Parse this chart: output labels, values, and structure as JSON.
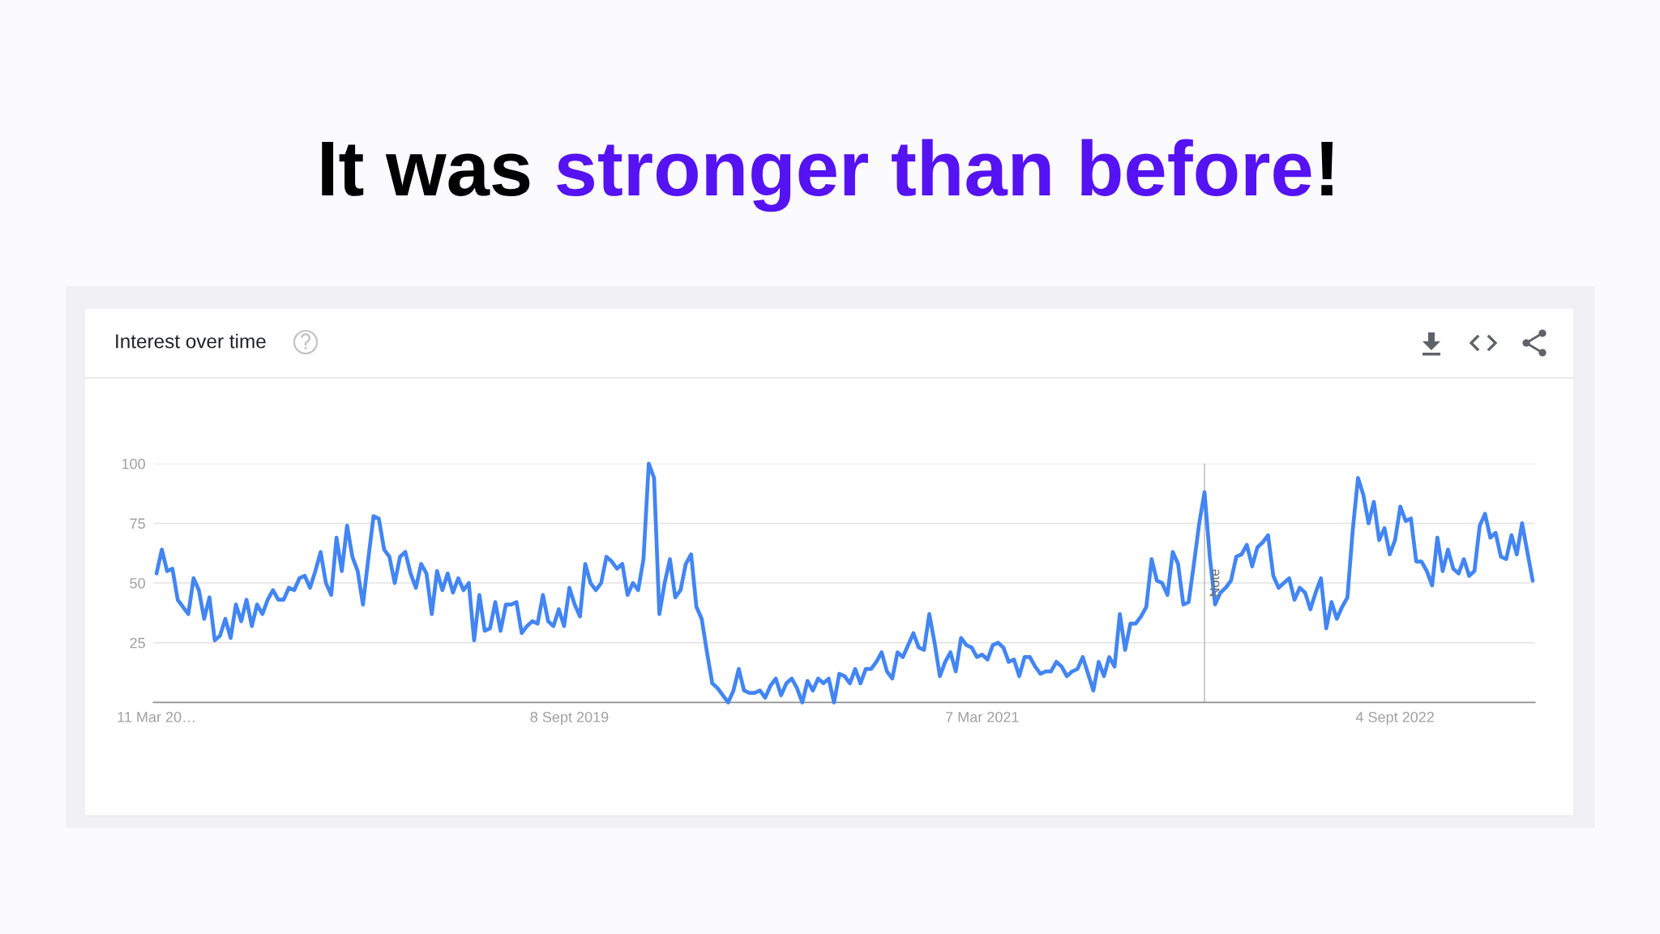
{
  "chart_data": {
    "type": "line",
    "title": "It was stronger than before!",
    "subtitle": "Interest over time",
    "x": [
      "2018-03-11",
      "2018-03-18",
      "2018-03-25",
      "2018-04-01",
      "2018-04-08",
      "2018-04-15",
      "2018-04-22",
      "2018-04-29",
      "2018-05-06",
      "2018-05-13",
      "2018-05-20",
      "2018-05-27",
      "2018-06-03",
      "2018-06-10",
      "2018-06-17",
      "2018-06-24",
      "2018-07-01",
      "2018-07-08",
      "2018-07-15",
      "2018-07-22",
      "2018-07-29",
      "2018-08-05",
      "2018-08-12",
      "2018-08-19",
      "2018-08-26",
      "2018-09-02",
      "2018-09-09",
      "2018-09-16",
      "2018-09-23",
      "2018-09-30",
      "2018-10-07",
      "2018-10-14",
      "2018-10-21",
      "2018-10-28",
      "2018-11-04",
      "2018-11-11",
      "2018-11-18",
      "2018-11-25",
      "2018-12-02",
      "2018-12-09",
      "2018-12-16",
      "2018-12-23",
      "2018-12-30",
      "2019-01-06",
      "2019-01-13",
      "2019-01-20",
      "2019-01-27",
      "2019-02-03",
      "2019-02-10",
      "2019-02-17",
      "2019-02-24",
      "2019-03-03",
      "2019-03-10",
      "2019-03-17",
      "2019-03-24",
      "2019-03-31",
      "2019-04-07",
      "2019-04-14",
      "2019-04-21",
      "2019-04-28",
      "2019-05-05",
      "2019-05-12",
      "2019-05-19",
      "2019-05-26",
      "2019-06-02",
      "2019-06-09",
      "2019-06-16",
      "2019-06-23",
      "2019-06-30",
      "2019-07-07",
      "2019-07-14",
      "2019-07-21",
      "2019-07-28",
      "2019-08-04",
      "2019-08-11",
      "2019-08-18",
      "2019-08-25",
      "2019-09-01",
      "2019-09-08",
      "2019-09-15",
      "2019-09-22",
      "2019-09-29",
      "2019-10-06",
      "2019-10-13",
      "2019-10-20",
      "2019-10-27",
      "2019-11-03",
      "2019-11-10",
      "2019-11-17",
      "2019-11-24",
      "2019-12-01",
      "2019-12-08",
      "2019-12-15",
      "2019-12-22",
      "2019-12-29",
      "2020-01-05",
      "2020-01-12",
      "2020-01-19",
      "2020-01-26",
      "2020-02-02",
      "2020-02-09",
      "2020-02-16",
      "2020-02-23",
      "2020-03-01",
      "2020-03-08",
      "2020-03-15",
      "2020-03-22",
      "2020-03-29",
      "2020-04-05",
      "2020-04-12",
      "2020-04-19",
      "2020-04-26",
      "2020-05-03",
      "2020-05-10",
      "2020-05-17",
      "2020-05-24",
      "2020-05-31",
      "2020-06-07",
      "2020-06-14",
      "2020-06-21",
      "2020-06-28",
      "2020-07-05",
      "2020-07-12",
      "2020-07-19",
      "2020-07-26",
      "2020-08-02",
      "2020-08-09",
      "2020-08-16",
      "2020-08-23",
      "2020-08-30",
      "2020-09-06",
      "2020-09-13",
      "2020-09-20",
      "2020-09-27",
      "2020-10-04",
      "2020-10-11",
      "2020-10-18",
      "2020-10-25",
      "2020-11-01",
      "2020-11-08",
      "2020-11-15",
      "2020-11-22",
      "2020-11-29",
      "2020-12-06",
      "2020-12-13",
      "2020-12-20",
      "2020-12-27",
      "2021-01-03",
      "2021-01-10",
      "2021-01-17",
      "2021-01-24",
      "2021-01-31",
      "2021-02-07",
      "2021-02-14",
      "2021-02-21",
      "2021-02-28",
      "2021-03-07",
      "2021-03-14",
      "2021-03-21",
      "2021-03-28",
      "2021-04-04",
      "2021-04-11",
      "2021-04-18",
      "2021-04-25",
      "2021-05-02",
      "2021-05-09",
      "2021-05-16",
      "2021-05-23",
      "2021-05-30",
      "2021-06-06",
      "2021-06-13",
      "2021-06-20",
      "2021-06-27",
      "2021-07-04",
      "2021-07-11",
      "2021-07-18",
      "2021-07-25",
      "2021-08-01",
      "2021-08-08",
      "2021-08-15",
      "2021-08-22",
      "2021-08-29",
      "2021-09-05",
      "2021-09-12",
      "2021-09-19",
      "2021-09-26",
      "2021-10-03",
      "2021-10-10",
      "2021-10-17",
      "2021-10-24",
      "2021-10-31",
      "2021-11-07",
      "2021-11-14",
      "2021-11-21",
      "2021-11-28",
      "2021-12-05",
      "2021-12-12",
      "2021-12-19",
      "2021-12-26",
      "2022-01-02",
      "2022-01-09",
      "2022-01-16",
      "2022-01-23",
      "2022-01-30",
      "2022-02-06",
      "2022-02-13",
      "2022-02-20",
      "2022-02-27",
      "2022-03-06",
      "2022-03-13",
      "2022-03-20",
      "2022-03-27",
      "2022-04-03",
      "2022-04-10",
      "2022-04-17",
      "2022-04-24",
      "2022-05-01",
      "2022-05-08",
      "2022-05-15",
      "2022-05-22",
      "2022-05-29",
      "2022-06-05",
      "2022-06-12",
      "2022-06-19",
      "2022-06-26",
      "2022-07-03",
      "2022-07-10",
      "2022-07-17",
      "2022-07-24",
      "2022-07-31",
      "2022-08-07",
      "2022-08-14",
      "2022-08-21",
      "2022-08-28",
      "2022-09-04",
      "2022-09-11",
      "2022-09-18",
      "2022-09-25",
      "2022-10-02",
      "2022-10-09",
      "2022-10-16",
      "2022-10-23",
      "2022-10-30",
      "2022-11-06",
      "2022-11-13",
      "2022-11-20",
      "2022-11-27",
      "2022-12-04",
      "2022-12-11",
      "2022-12-18",
      "2022-12-25",
      "2023-01-01",
      "2023-01-08",
      "2023-01-15",
      "2023-01-22",
      "2023-01-29",
      "2023-02-05",
      "2023-02-12",
      "2023-02-19",
      "2023-02-26",
      "2023-03-05"
    ],
    "series": [
      {
        "color": "#4285f4",
        "values": [
          54,
          64,
          55,
          56,
          43,
          40,
          37,
          52,
          47,
          35,
          44,
          26,
          28,
          35,
          27,
          41,
          34,
          43,
          32,
          41,
          37,
          43,
          47,
          43,
          43,
          48,
          47,
          52,
          53,
          48,
          55,
          63,
          50,
          45,
          69,
          55,
          74,
          61,
          55,
          41,
          60,
          78,
          77,
          64,
          61,
          50,
          61,
          63,
          54,
          48,
          58,
          54,
          37,
          55,
          47,
          54,
          46,
          52,
          47,
          50,
          26,
          45,
          30,
          31,
          42,
          30,
          41,
          41,
          42,
          29,
          32,
          34,
          33,
          45,
          34,
          32,
          39,
          32,
          48,
          41,
          36,
          58,
          50,
          47,
          50,
          61,
          59,
          56,
          58,
          45,
          50,
          47,
          60,
          100,
          94,
          37,
          50,
          60,
          44,
          47,
          58,
          62,
          40,
          35,
          21,
          8,
          6,
          3,
          0,
          5,
          14,
          5,
          4,
          4,
          5,
          2,
          7,
          10,
          3,
          8,
          10,
          6,
          0,
          9,
          5,
          10,
          8,
          10,
          0,
          12,
          11,
          8,
          14,
          8,
          14,
          14,
          17,
          21,
          13,
          10,
          21,
          19,
          24,
          29,
          23,
          22,
          37,
          25,
          11,
          17,
          21,
          13,
          27,
          24,
          23,
          19,
          20,
          18,
          24,
          25,
          23,
          17,
          18,
          11,
          19,
          19,
          15,
          12,
          13,
          13,
          17,
          15,
          11,
          13,
          14,
          19,
          12,
          5,
          17,
          11,
          19,
          15,
          37,
          22,
          33,
          33,
          36,
          40,
          60,
          51,
          50,
          45,
          63,
          58,
          41,
          42,
          58,
          75,
          88,
          61,
          41,
          46,
          48,
          51,
          61,
          62,
          66,
          57,
          65,
          67,
          70,
          53,
          48,
          50,
          52,
          43,
          48,
          46,
          39,
          46,
          52,
          31,
          42,
          35,
          40,
          44,
          72,
          94,
          87,
          75,
          84,
          68,
          73,
          62,
          68,
          82,
          76,
          77,
          59,
          59,
          55,
          49,
          69,
          55,
          64,
          56,
          54,
          60,
          53,
          55,
          74,
          79,
          69,
          71,
          61,
          60,
          70,
          62,
          75,
          63,
          51
        ]
      }
    ],
    "xlim": [
      "2018-03-07",
      "2023-03-08"
    ],
    "xticks": [
      {
        "value": "2018-03-11",
        "label": "11 Mar 20…"
      },
      {
        "value": "2019-09-08",
        "label": "8 Sept 2019"
      },
      {
        "value": "2021-03-07",
        "label": "7 Mar 2021"
      },
      {
        "value": "2022-09-04",
        "label": "4 Sept 2022"
      }
    ],
    "ylim": [
      0,
      100
    ],
    "yticks": [
      25,
      50,
      75,
      100
    ],
    "grid": "y",
    "ref_lines": [
      {
        "axis": "x",
        "value": "2021-12-26",
        "label": "Note"
      }
    ]
  }
}
